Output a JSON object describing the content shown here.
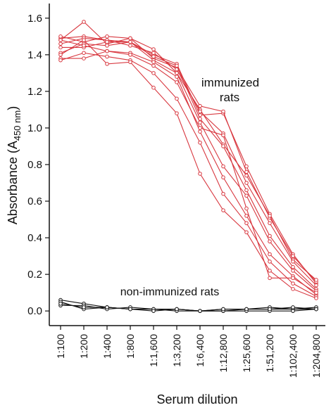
{
  "chart_data": {
    "type": "line",
    "xlabel": "Serum dilution",
    "ylabel": "Absorbance (A",
    "ylabel_sub": "450 nm",
    "ylabel_close": ")",
    "ylim": [
      -0.08,
      1.68
    ],
    "yticks": [
      "0.0",
      "0.2",
      "0.4",
      "0.6",
      "0.8",
      "1.0",
      "1.2",
      "1.4",
      "1.6"
    ],
    "categories": [
      "1:100",
      "1:200",
      "1:400",
      "1:800",
      "1:1,600",
      "1:3,200",
      "1:6,400",
      "1:12,800",
      "1:25,600",
      "1:51,200",
      "1:102,400",
      "1:204,800"
    ],
    "annotations": {
      "immunized_line1": "immunized",
      "immunized_line2": "rats",
      "non_immunized": "non-immunized rats"
    },
    "colors": {
      "immunized": "#d8373f",
      "non_immunized": "#111111"
    },
    "series_immunized": [
      [
        1.49,
        1.5,
        1.48,
        1.47,
        1.4,
        1.35,
        1.07,
        1.08,
        0.79,
        0.53,
        0.31,
        0.15
      ],
      [
        1.48,
        1.58,
        1.46,
        1.49,
        1.38,
        1.33,
        1.12,
        1.09,
        0.76,
        0.51,
        0.3,
        0.16
      ],
      [
        1.5,
        1.47,
        1.5,
        1.49,
        1.43,
        1.3,
        1.1,
        0.91,
        0.74,
        0.52,
        0.28,
        0.17
      ],
      [
        1.46,
        1.49,
        1.48,
        1.45,
        1.41,
        1.32,
        1.09,
        0.97,
        0.7,
        0.48,
        0.27,
        0.14
      ],
      [
        1.44,
        1.44,
        1.47,
        1.47,
        1.39,
        1.34,
        1.05,
        0.9,
        0.66,
        0.41,
        0.24,
        0.12
      ],
      [
        1.41,
        1.46,
        1.45,
        1.47,
        1.37,
        1.3,
        1.03,
        0.79,
        0.63,
        0.38,
        0.22,
        0.11
      ],
      [
        1.38,
        1.38,
        1.42,
        1.41,
        1.36,
        1.28,
        0.98,
        0.73,
        0.52,
        0.31,
        0.19,
        0.09
      ],
      [
        1.37,
        1.41,
        1.39,
        1.37,
        1.3,
        1.16,
        0.92,
        0.64,
        0.48,
        0.27,
        0.15,
        0.08
      ],
      [
        1.4,
        1.48,
        1.35,
        1.36,
        1.22,
        1.08,
        0.75,
        0.55,
        0.43,
        0.22,
        0.12,
        0.07
      ],
      [
        1.48,
        1.45,
        1.42,
        1.4,
        1.34,
        1.25,
        1.0,
        0.96,
        0.56,
        0.18,
        0.18,
        0.1
      ]
    ],
    "series_non_immunized": [
      [
        0.06,
        0.04,
        0.02,
        0.01,
        0.01,
        0.01,
        0.0,
        0.0,
        0.01,
        0.01,
        0.01,
        0.01
      ],
      [
        0.05,
        0.01,
        0.02,
        0.01,
        0.01,
        0.0,
        0.0,
        0.01,
        0.01,
        0.02,
        0.01,
        0.02
      ],
      [
        0.03,
        0.03,
        0.01,
        0.02,
        0.01,
        0.01,
        0.0,
        0.0,
        0.0,
        0.0,
        0.0,
        0.01
      ],
      [
        0.04,
        0.02,
        0.02,
        0.01,
        0.0,
        0.01,
        0.0,
        0.01,
        0.01,
        0.01,
        0.02,
        0.01
      ]
    ]
  }
}
